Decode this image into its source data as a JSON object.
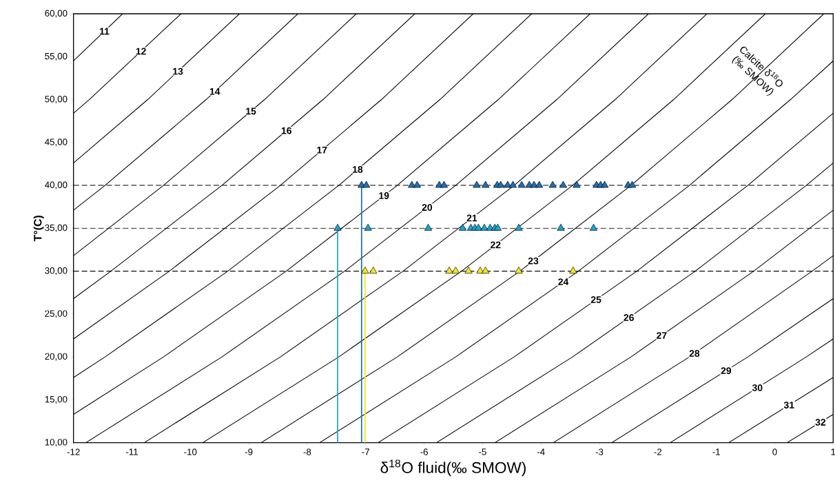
{
  "chart_data": {
    "type": "line",
    "xlabel": "δ$^{18}$O fluid(‰ SMOW)",
    "ylabel": "T°(C)",
    "annotations": [
      "Calcite δ$^{18}$O (‰ SMOW)"
    ],
    "xlim": [
      -12,
      1
    ],
    "ylim": [
      10,
      60
    ],
    "xticks": [
      -12,
      -11,
      -10,
      -9,
      -8,
      -7,
      -6,
      -5,
      -4,
      -3,
      -2,
      -1,
      0,
      1
    ],
    "yticks": [
      {
        "value": 10,
        "label": "10,00"
      },
      {
        "value": 15,
        "label": "15,00"
      },
      {
        "value": 20,
        "label": "20,00"
      },
      {
        "value": 25,
        "label": "25,00"
      },
      {
        "value": 30,
        "label": "30,00"
      },
      {
        "value": 35,
        "label": "35,00"
      },
      {
        "value": 40,
        "label": "40,00"
      },
      {
        "value": 45,
        "label": "45,00"
      },
      {
        "value": 50,
        "label": "50,00"
      },
      {
        "value": 55,
        "label": "55,00"
      },
      {
        "value": 60,
        "label": "60,00"
      }
    ],
    "line_style": "solid",
    "ref_lines": [
      {
        "axis": "y",
        "value": 40,
        "color": "#000000",
        "line_style": "dashed"
      },
      {
        "axis": "y",
        "value": 35,
        "color": "#000000",
        "line_style": "dashed"
      },
      {
        "axis": "y",
        "value": 30,
        "color": "#000000",
        "line_style": "dashed"
      }
    ],
    "series": [
      {
        "name": "11",
        "color": "#000000",
        "x": [
          -12,
          -11.16
        ],
        "values": [
          54.5,
          60
        ]
      },
      {
        "name": "12",
        "color": "#000000",
        "x": [
          -12,
          -11.73,
          -10.16
        ],
        "values": [
          48.4,
          50,
          60
        ]
      },
      {
        "name": "13",
        "color": "#000000",
        "x": [
          -12,
          -10.73,
          -9.16
        ],
        "values": [
          42.6,
          50,
          60
        ]
      },
      {
        "name": "14",
        "color": "#000000",
        "x": [
          -12,
          -11.46,
          -9.73,
          -8.16
        ],
        "values": [
          37.1,
          40,
          50,
          60
        ]
      },
      {
        "name": "15",
        "color": "#000000",
        "x": [
          -12,
          -10.46,
          -8.73,
          -7.16
        ],
        "values": [
          31.8,
          40,
          50,
          60
        ]
      },
      {
        "name": "16",
        "color": "#000000",
        "x": [
          -12,
          -11.36,
          -9.46,
          -7.73,
          -6.16
        ],
        "values": [
          26.8,
          30,
          40,
          50,
          60
        ]
      },
      {
        "name": "17",
        "color": "#000000",
        "x": [
          -12,
          -10.36,
          -8.46,
          -6.73,
          -5.16
        ],
        "values": [
          22.1,
          30,
          40,
          50,
          60
        ]
      },
      {
        "name": "18",
        "color": "#000000",
        "x": [
          -12,
          -11.46,
          -9.36,
          -7.46,
          -5.73,
          -4.16
        ],
        "values": [
          17.6,
          20,
          30,
          40,
          50,
          60
        ]
      },
      {
        "name": "19",
        "color": "#000000",
        "x": [
          -12,
          -10.46,
          -8.36,
          -6.46,
          -4.73,
          -3.16
        ],
        "values": [
          13.3,
          20,
          30,
          40,
          50,
          60
        ]
      },
      {
        "name": "20",
        "color": "#000000",
        "x": [
          -11.79,
          -9.46,
          -7.36,
          -5.46,
          -3.73,
          -2.16
        ],
        "values": [
          10,
          20,
          30,
          40,
          50,
          60
        ]
      },
      {
        "name": "21",
        "color": "#000000",
        "x": [
          -10.79,
          -8.46,
          -6.36,
          -4.46,
          -2.73,
          -1.16
        ],
        "values": [
          10,
          20,
          30,
          40,
          50,
          60
        ]
      },
      {
        "name": "22",
        "color": "#000000",
        "x": [
          -9.79,
          -7.46,
          -5.36,
          -3.46,
          -1.73,
          -0.16
        ],
        "values": [
          10,
          20,
          30,
          40,
          50,
          60
        ]
      },
      {
        "name": "23",
        "color": "#000000",
        "x": [
          -8.79,
          -6.46,
          -4.36,
          -2.46,
          -0.73,
          0.84
        ],
        "values": [
          10,
          20,
          30,
          40,
          50,
          60
        ]
      },
      {
        "name": "24",
        "color": "#000000",
        "x": [
          -7.79,
          -5.46,
          -3.36,
          -1.46,
          0.27,
          1
        ],
        "values": [
          10,
          20,
          30,
          40,
          50,
          54.5
        ]
      },
      {
        "name": "25",
        "color": "#000000",
        "x": [
          -6.79,
          -4.46,
          -2.36,
          -0.46,
          1
        ],
        "values": [
          10,
          20,
          30,
          40,
          48.4
        ]
      },
      {
        "name": "26",
        "color": "#000000",
        "x": [
          -5.79,
          -3.46,
          -1.36,
          0.54,
          1
        ],
        "values": [
          10,
          20,
          30,
          40,
          42.6
        ]
      },
      {
        "name": "27",
        "color": "#000000",
        "x": [
          -4.79,
          -2.46,
          -0.36,
          1
        ],
        "values": [
          10,
          20,
          30,
          37.1
        ]
      },
      {
        "name": "28",
        "color": "#000000",
        "x": [
          -3.79,
          -1.46,
          0.64,
          1
        ],
        "values": [
          10,
          20,
          30,
          31.8
        ]
      },
      {
        "name": "29",
        "color": "#000000",
        "x": [
          -2.79,
          -0.46,
          1
        ],
        "values": [
          10,
          20,
          26.8
        ]
      },
      {
        "name": "30",
        "color": "#000000",
        "x": [
          -1.79,
          0.54,
          1
        ],
        "values": [
          10,
          20,
          22.1
        ]
      },
      {
        "name": "31",
        "color": "#000000",
        "x": [
          -0.79,
          1
        ],
        "values": [
          10,
          17.6
        ]
      },
      {
        "name": "32",
        "color": "#000000",
        "x": [
          0.21,
          1
        ],
        "values": [
          10,
          13.3
        ]
      },
      {
        "type": "scatter",
        "marker": "triangle",
        "color": "#1f6fb5",
        "x": [
          -7.07,
          -6.99,
          -6.21,
          -6.12,
          -5.74,
          -5.66,
          -5.1,
          -4.95,
          -4.75,
          -4.69,
          -4.57,
          -4.48,
          -4.33,
          -4.2,
          -4.12,
          -4.03,
          -3.8,
          -3.62,
          -3.39,
          -3.05,
          -2.98,
          -2.91,
          -2.51,
          -2.44
        ],
        "values": [
          40,
          40,
          40,
          40,
          40,
          40,
          40,
          40,
          40,
          40,
          40,
          40,
          40,
          40,
          40,
          40,
          40,
          40,
          40,
          40,
          40,
          40,
          40,
          40
        ],
        "errors": [
          [
            10,
            40
          ],
          null,
          null,
          null,
          null,
          null,
          null,
          null,
          null,
          null,
          null,
          null,
          null,
          null,
          null,
          null,
          null,
          null,
          null,
          null,
          null,
          null,
          null,
          null
        ]
      },
      {
        "type": "scatter",
        "marker": "triangle",
        "color": "#19a3d4",
        "x": [
          -7.48,
          -6.96,
          -5.93,
          -5.34,
          -5.2,
          -5.13,
          -5.07,
          -4.97,
          -4.87,
          -4.79,
          -4.74,
          -4.38,
          -3.66,
          -3.1
        ],
        "values": [
          35,
          35,
          35,
          35,
          35,
          35,
          35,
          35,
          35,
          35,
          35,
          35,
          35,
          35
        ],
        "errors": [
          [
            10,
            35
          ],
          null,
          null,
          null,
          null,
          null,
          null,
          null,
          null,
          null,
          null,
          null,
          null,
          null
        ]
      },
      {
        "type": "scatter",
        "marker": "triangle",
        "color": "#f5e61b",
        "x": [
          -7.01,
          -6.87,
          -5.57,
          -5.46,
          -5.24,
          -5.04,
          -4.95,
          -4.38,
          -3.45
        ],
        "values": [
          30,
          30,
          30,
          30,
          30,
          30,
          30,
          30,
          30
        ],
        "errors": [
          [
            10,
            30
          ],
          null,
          null,
          null,
          null,
          null,
          null,
          null,
          null
        ]
      }
    ]
  }
}
